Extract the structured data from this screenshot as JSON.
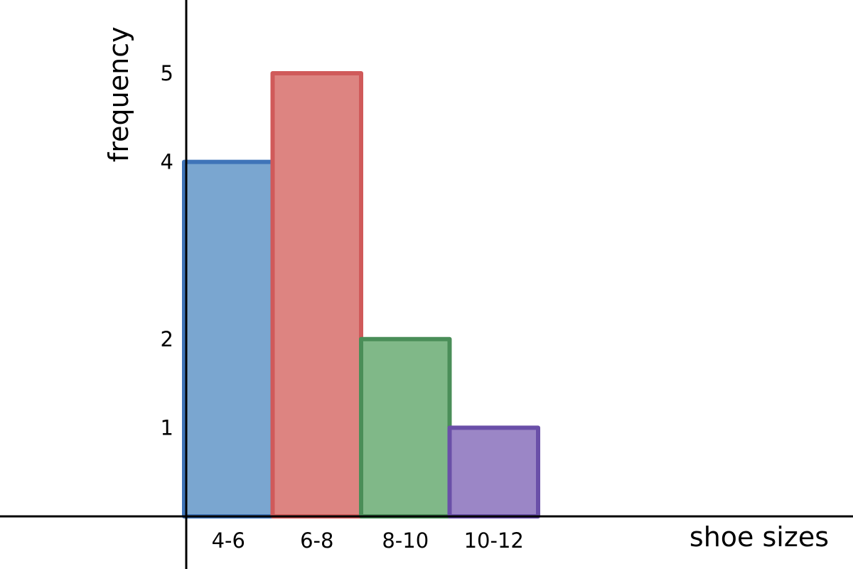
{
  "chart_data": {
    "type": "bar",
    "histogram": true,
    "categories": [
      "4-6",
      "6-8",
      "8-10",
      "10-12"
    ],
    "values": [
      4,
      5,
      2,
      1
    ],
    "bar_colors": [
      "#7aa6d0",
      "#dd8481",
      "#80b888",
      "#9b86c6"
    ],
    "bar_edge_colors": [
      "#3f74b8",
      "#d05a5a",
      "#4a8e58",
      "#6a4fa8"
    ],
    "title": "",
    "xlabel": "shoe sizes",
    "ylabel": "frequency",
    "yticks": [
      1,
      2,
      4,
      5
    ],
    "ylim": [
      0,
      5.8
    ],
    "grid": false,
    "legend": false
  }
}
